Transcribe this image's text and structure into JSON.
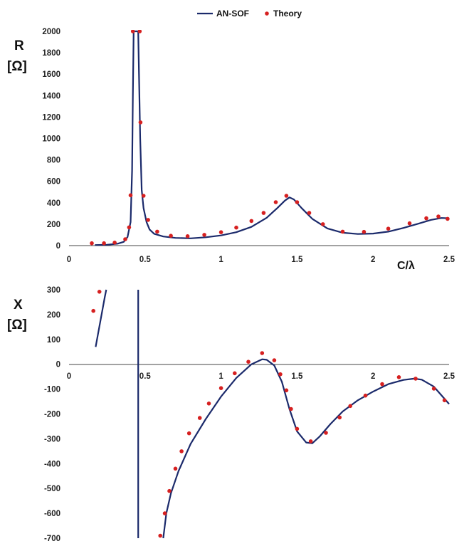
{
  "legend": {
    "series_a": "AN-SOF",
    "series_b": "Theory"
  },
  "colors": {
    "line": "#1b2a6b",
    "points": "#d62020"
  },
  "chart_data": [
    {
      "type": "line",
      "title": "",
      "ylabel_line1": "R",
      "ylabel_line2": "[Ω]",
      "xlabel": "C/λ",
      "xlim": [
        0,
        2.5
      ],
      "ylim": [
        0,
        2000
      ],
      "x_ticks": [
        "0",
        "0.5",
        "1",
        "1.5",
        "2",
        "2.5"
      ],
      "y_ticks": [
        "0",
        "200",
        "400",
        "600",
        "800",
        "1000",
        "1200",
        "1400",
        "1600",
        "1800",
        "2000"
      ],
      "grid": false,
      "legend_position": "top",
      "series": [
        {
          "name": "AN-SOF",
          "kind": "line",
          "points": [
            [
              0.17,
              5
            ],
            [
              0.25,
              8
            ],
            [
              0.32,
              18
            ],
            [
              0.36,
              35
            ],
            [
              0.385,
              80
            ],
            [
              0.405,
              220
            ],
            [
              0.415,
              700
            ],
            [
              0.42,
              1400
            ],
            [
              0.425,
              2000
            ],
            [
              0.455,
              2000
            ],
            [
              0.46,
              1600
            ],
            [
              0.468,
              1000
            ],
            [
              0.478,
              520
            ],
            [
              0.49,
              350
            ],
            [
              0.51,
              220
            ],
            [
              0.53,
              150
            ],
            [
              0.56,
              110
            ],
            [
              0.62,
              85
            ],
            [
              0.7,
              72
            ],
            [
              0.8,
              68
            ],
            [
              0.9,
              78
            ],
            [
              1.0,
              95
            ],
            [
              1.1,
              125
            ],
            [
              1.2,
              175
            ],
            [
              1.3,
              260
            ],
            [
              1.37,
              350
            ],
            [
              1.42,
              420
            ],
            [
              1.45,
              450
            ],
            [
              1.48,
              430
            ],
            [
              1.53,
              350
            ],
            [
              1.6,
              250
            ],
            [
              1.7,
              160
            ],
            [
              1.8,
              120
            ],
            [
              1.9,
              108
            ],
            [
              2.0,
              112
            ],
            [
              2.1,
              130
            ],
            [
              2.2,
              165
            ],
            [
              2.3,
              205
            ],
            [
              2.38,
              240
            ],
            [
              2.45,
              258
            ],
            [
              2.5,
              255
            ]
          ]
        },
        {
          "name": "Theory",
          "kind": "scatter",
          "points": [
            [
              0.15,
              22
            ],
            [
              0.23,
              22
            ],
            [
              0.3,
              28
            ],
            [
              0.37,
              60
            ],
            [
              0.395,
              170
            ],
            [
              0.405,
              470
            ],
            [
              0.42,
              2000
            ],
            [
              0.465,
              2000
            ],
            [
              0.47,
              1150
            ],
            [
              0.49,
              465
            ],
            [
              0.52,
              240
            ],
            [
              0.58,
              130
            ],
            [
              0.67,
              92
            ],
            [
              0.78,
              88
            ],
            [
              0.89,
              100
            ],
            [
              1.0,
              125
            ],
            [
              1.1,
              168
            ],
            [
              1.2,
              230
            ],
            [
              1.28,
              305
            ],
            [
              1.36,
              405
            ],
            [
              1.43,
              465
            ],
            [
              1.5,
              405
            ],
            [
              1.58,
              305
            ],
            [
              1.67,
              200
            ],
            [
              1.8,
              130
            ],
            [
              1.94,
              128
            ],
            [
              2.1,
              158
            ],
            [
              2.24,
              208
            ],
            [
              2.35,
              255
            ],
            [
              2.43,
              272
            ],
            [
              2.49,
              250
            ]
          ]
        }
      ]
    },
    {
      "type": "line",
      "title": "",
      "ylabel_line1": "X",
      "ylabel_line2": "[Ω]",
      "xlabel": "",
      "xlim": [
        0,
        2.5
      ],
      "ylim": [
        -700,
        300
      ],
      "x_ticks": [
        "0",
        "0.5",
        "1",
        "1.5",
        "2",
        "2.5"
      ],
      "y_ticks": [
        "-700",
        "-600",
        "-500",
        "-400",
        "-300",
        "-200",
        "-100",
        "0",
        "100",
        "200",
        "300"
      ],
      "grid": false,
      "series": [
        {
          "name": "AN-SOF",
          "kind": "line",
          "segments": [
            [
              [
                0.175,
                70
              ],
              [
                0.19,
                120
              ],
              [
                0.205,
                170
              ],
              [
                0.22,
                220
              ],
              [
                0.235,
                270
              ],
              [
                0.245,
                300
              ]
            ],
            [
              [
                0.455,
                300
              ],
              [
                0.455,
                -700
              ]
            ],
            [
              [
                0.62,
                -700
              ],
              [
                0.64,
                -600
              ],
              [
                0.67,
                -520
              ],
              [
                0.72,
                -430
              ],
              [
                0.8,
                -320
              ],
              [
                0.9,
                -220
              ],
              [
                1.0,
                -130
              ],
              [
                1.1,
                -55
              ],
              [
                1.2,
                0
              ],
              [
                1.27,
                20
              ],
              [
                1.3,
                18
              ],
              [
                1.35,
                -5
              ],
              [
                1.4,
                -70
              ],
              [
                1.45,
                -180
              ],
              [
                1.5,
                -270
              ],
              [
                1.56,
                -315
              ],
              [
                1.6,
                -318
              ],
              [
                1.65,
                -290
              ],
              [
                1.72,
                -240
              ],
              [
                1.8,
                -190
              ],
              [
                1.9,
                -145
              ],
              [
                2.0,
                -110
              ],
              [
                2.1,
                -80
              ],
              [
                2.2,
                -63
              ],
              [
                2.27,
                -58
              ],
              [
                2.32,
                -62
              ],
              [
                2.4,
                -90
              ],
              [
                2.5,
                -160
              ]
            ]
          ]
        },
        {
          "name": "Theory",
          "kind": "scatter",
          "points": [
            [
              0.16,
              215
            ],
            [
              0.2,
              292
            ],
            [
              0.6,
              -690
            ],
            [
              0.63,
              -600
            ],
            [
              0.66,
              -510
            ],
            [
              0.7,
              -420
            ],
            [
              0.74,
              -350
            ],
            [
              0.79,
              -278
            ],
            [
              0.86,
              -216
            ],
            [
              0.92,
              -158
            ],
            [
              1.0,
              -96
            ],
            [
              1.09,
              -36
            ],
            [
              1.18,
              10
            ],
            [
              1.27,
              45
            ],
            [
              1.35,
              16
            ],
            [
              1.39,
              -40
            ],
            [
              1.43,
              -105
            ],
            [
              1.46,
              -180
            ],
            [
              1.5,
              -260
            ],
            [
              1.59,
              -310
            ],
            [
              1.69,
              -276
            ],
            [
              1.78,
              -214
            ],
            [
              1.85,
              -168
            ],
            [
              1.95,
              -126
            ],
            [
              2.06,
              -80
            ],
            [
              2.17,
              -52
            ],
            [
              2.28,
              -58
            ],
            [
              2.4,
              -98
            ],
            [
              2.47,
              -145
            ]
          ]
        }
      ]
    }
  ]
}
